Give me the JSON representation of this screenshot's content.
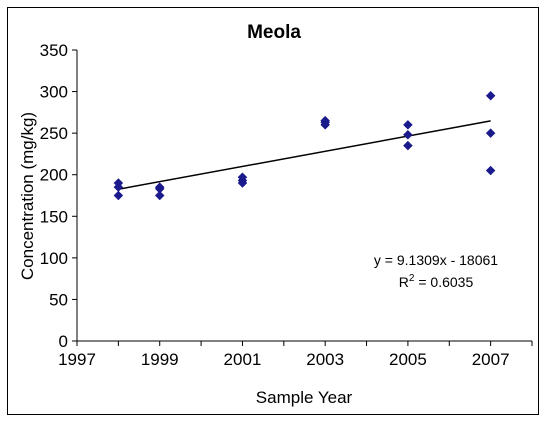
{
  "chart_data": {
    "type": "scatter",
    "title": "Meola",
    "xlabel": "Sample Year",
    "ylabel": "Concentration (mg/kg)",
    "xlim": [
      1997,
      2008
    ],
    "ylim": [
      0,
      350
    ],
    "x_ticks": [
      1997,
      1999,
      2001,
      2003,
      2005,
      2007
    ],
    "y_ticks": [
      0,
      50,
      100,
      150,
      200,
      250,
      300,
      350
    ],
    "grid": false,
    "legend": "none",
    "point_color": "#1a1a8c",
    "series": [
      {
        "points": [
          {
            "x": 1998,
            "y": 190
          },
          {
            "x": 1998,
            "y": 185
          },
          {
            "x": 1998,
            "y": 175
          },
          {
            "x": 1999,
            "y": 185
          },
          {
            "x": 1999,
            "y": 183
          },
          {
            "x": 1999,
            "y": 175
          },
          {
            "x": 2001,
            "y": 197
          },
          {
            "x": 2001,
            "y": 193
          },
          {
            "x": 2001,
            "y": 190
          },
          {
            "x": 2003,
            "y": 265
          },
          {
            "x": 2003,
            "y": 263
          },
          {
            "x": 2003,
            "y": 260
          },
          {
            "x": 2005,
            "y": 260
          },
          {
            "x": 2005,
            "y": 248
          },
          {
            "x": 2005,
            "y": 235
          },
          {
            "x": 2007,
            "y": 295
          },
          {
            "x": 2007,
            "y": 250
          },
          {
            "x": 2007,
            "y": 205
          }
        ]
      }
    ],
    "trendline": {
      "type": "linear",
      "slope": 9.1309,
      "intercept": -18061,
      "x_range": [
        1998,
        2007
      ],
      "equation_line1_prefix": "y = 9.1309x - 18061",
      "equation_line2_prefix": "R",
      "equation_line2_sup": "2",
      "equation_line2_suffix": " = 0.6035"
    }
  }
}
